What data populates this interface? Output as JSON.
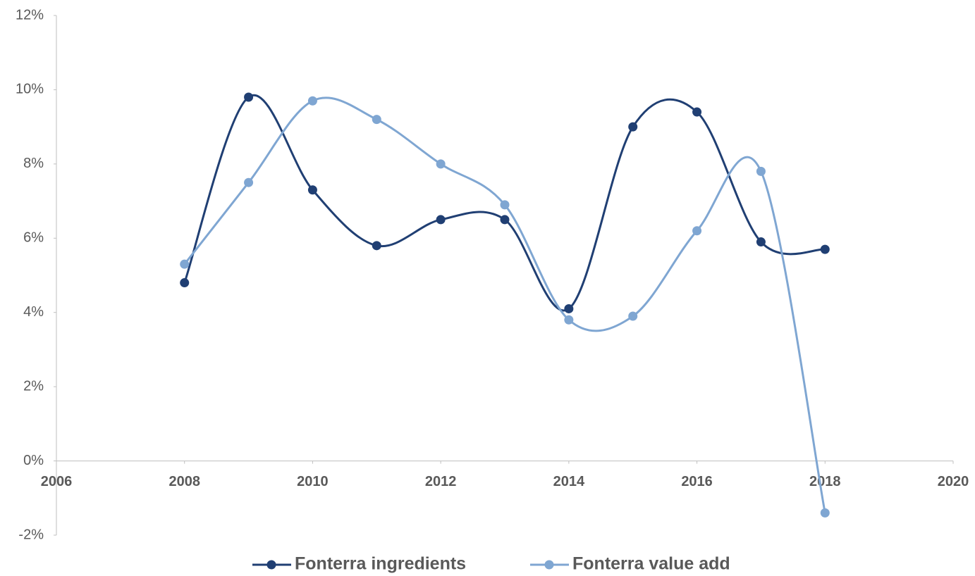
{
  "chart_data": {
    "type": "line",
    "x": [
      2008,
      2009,
      2010,
      2011,
      2012,
      2013,
      2014,
      2015,
      2016,
      2017,
      2018
    ],
    "series": [
      {
        "name": "Fonterra ingredients",
        "color": "#203f73",
        "values": [
          4.8,
          9.8,
          7.3,
          5.8,
          6.5,
          6.5,
          4.1,
          9.0,
          9.4,
          5.9,
          5.7
        ]
      },
      {
        "name": "Fonterra value add",
        "color": "#7fa6d2",
        "values": [
          5.3,
          7.5,
          9.7,
          9.2,
          8.0,
          6.9,
          3.8,
          3.9,
          6.2,
          7.8,
          -1.4
        ]
      }
    ],
    "xlim": [
      2006,
      2020
    ],
    "xticks": [
      2006,
      2008,
      2010,
      2012,
      2014,
      2016,
      2018,
      2020
    ],
    "ylim": [
      -2,
      12
    ],
    "yticks": [
      {
        "value": -2,
        "label": "-2%"
      },
      {
        "value": 0,
        "label": "0%"
      },
      {
        "value": 2,
        "label": "2%"
      },
      {
        "value": 4,
        "label": "4%"
      },
      {
        "value": 6,
        "label": "6%"
      },
      {
        "value": 8,
        "label": "8%"
      },
      {
        "value": 10,
        "label": "10%"
      },
      {
        "value": 12,
        "label": "12%"
      }
    ],
    "smooth": true,
    "legend": "bottom"
  }
}
